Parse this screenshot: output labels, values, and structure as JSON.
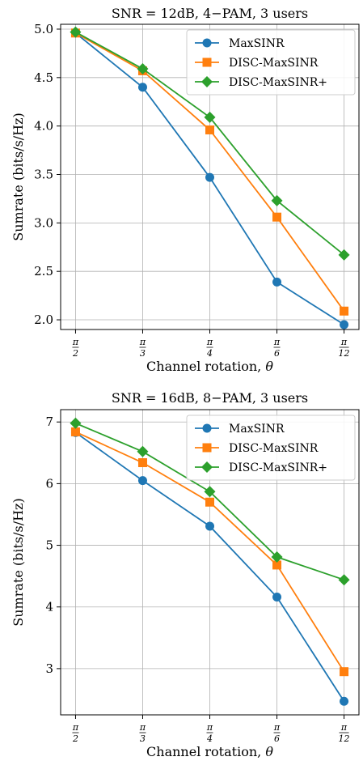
{
  "chart_data": [
    {
      "type": "line",
      "title": "SNR = 12dB, 4−PAM, 3 users",
      "xlabel": "Channel rotation, θ",
      "ylabel": "Sumrate (bits/s/Hz)",
      "categories": [
        "π/2",
        "π/3",
        "π/4",
        "π/6",
        "π/12"
      ],
      "x_ticks": [
        {
          "num": "π",
          "den": "2"
        },
        {
          "num": "π",
          "den": "3"
        },
        {
          "num": "π",
          "den": "4"
        },
        {
          "num": "π",
          "den": "6"
        },
        {
          "num": "π",
          "den": "12"
        }
      ],
      "ylim": [
        1.9,
        5.05
      ],
      "yticks": [
        2.0,
        2.5,
        3.0,
        3.5,
        4.0,
        4.5,
        5.0
      ],
      "ytick_labels": [
        "2.0",
        "2.5",
        "3.0",
        "3.5",
        "4.0",
        "4.5",
        "5.0"
      ],
      "grid": true,
      "legend": "top-right",
      "series": [
        {
          "name": "MaxSINR",
          "color": "#1f77b4",
          "marker": "circle",
          "values": [
            4.96,
            4.4,
            3.47,
            2.39,
            1.95
          ]
        },
        {
          "name": "DISC-MaxSINR",
          "color": "#ff7f0e",
          "marker": "square",
          "values": [
            4.96,
            4.57,
            3.96,
            3.06,
            2.09
          ]
        },
        {
          "name": "DISC-MaxSINR+",
          "color": "#2ca02c",
          "marker": "diamond",
          "values": [
            4.97,
            4.59,
            4.09,
            3.23,
            2.67
          ]
        }
      ]
    },
    {
      "type": "line",
      "title": "SNR = 16dB, 8−PAM, 3 users",
      "xlabel": "Channel rotation, θ",
      "ylabel": "Sumrate (bits/s/Hz)",
      "categories": [
        "π/2",
        "π/3",
        "π/4",
        "π/6",
        "π/12"
      ],
      "x_ticks": [
        {
          "num": "π",
          "den": "2"
        },
        {
          "num": "π",
          "den": "3"
        },
        {
          "num": "π",
          "den": "4"
        },
        {
          "num": "π",
          "den": "6"
        },
        {
          "num": "π",
          "den": "12"
        }
      ],
      "ylim": [
        2.25,
        7.2
      ],
      "yticks": [
        3,
        4,
        5,
        6,
        7
      ],
      "ytick_labels": [
        "3",
        "4",
        "5",
        "6",
        "7"
      ],
      "grid": true,
      "legend": "top-right",
      "series": [
        {
          "name": "MaxSINR",
          "color": "#1f77b4",
          "marker": "circle",
          "values": [
            6.83,
            6.05,
            5.31,
            4.16,
            2.47
          ]
        },
        {
          "name": "DISC-MaxSINR",
          "color": "#ff7f0e",
          "marker": "square",
          "values": [
            6.84,
            6.34,
            5.7,
            4.68,
            2.95
          ]
        },
        {
          "name": "DISC-MaxSINR+",
          "color": "#2ca02c",
          "marker": "diamond",
          "values": [
            6.98,
            6.52,
            5.87,
            4.81,
            4.44
          ]
        }
      ]
    }
  ]
}
